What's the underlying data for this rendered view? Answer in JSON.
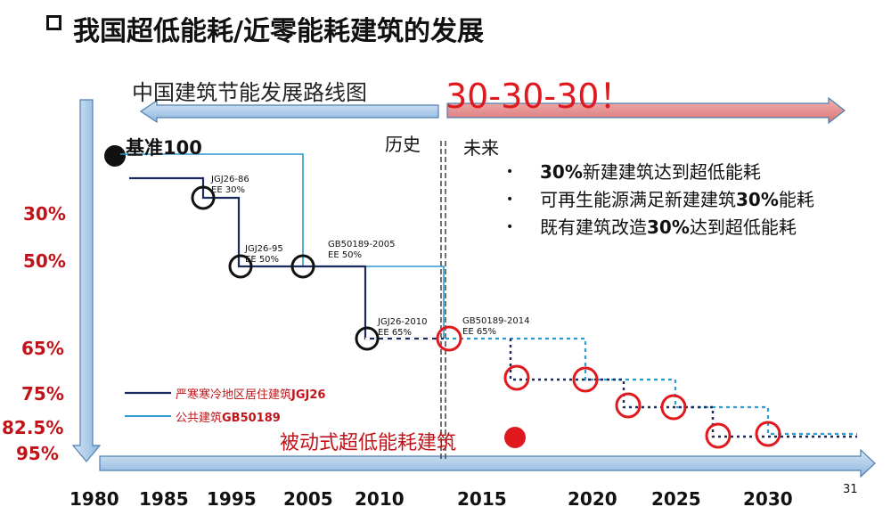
{
  "title": "我国超低能耗/近零能耗建筑的发展",
  "roadmap_label": "中国建筑节能发展路线图",
  "slogan": "30-30-30！",
  "history_label": "历史",
  "future_label": "未来",
  "baseline_label": "基准100",
  "future_goals": [
    {
      "pre": "",
      "bold": "30%",
      "post": "新建建筑达到超低能耗"
    },
    {
      "pre": "可再生能源满足新建建筑",
      "bold": "30%",
      "post": "能耗"
    },
    {
      "pre": "既有建筑改造",
      "bold": "30%",
      "post": "达到超低能耗"
    }
  ],
  "percent_labels": [
    "30%",
    "50%",
    "65%",
    "75%",
    "82.5%",
    "95%"
  ],
  "years": [
    "1980",
    "1985",
    "1995",
    "2005",
    "2010",
    "2015",
    "2020",
    "2025",
    "2030"
  ],
  "standards": {
    "jgj26_86": {
      "code": "JGJ26-86",
      "ee": "EE 30%"
    },
    "jgj26_95": {
      "code": "JGJ26-95",
      "ee": "EE 50%"
    },
    "gb50189_2005": {
      "code": "GB50189-2005",
      "ee": "EE 50%"
    },
    "jgj26_2010": {
      "code": "JGJ26-2010",
      "ee": "EE 65%"
    },
    "gb50189_2014": {
      "code": "GB50189-2014",
      "ee": "EE 65%"
    }
  },
  "legend": [
    {
      "pre": "严寒寒冷地区居住建筑",
      "bold": "JGJ26",
      "color": "#1b2a5e"
    },
    {
      "pre": "公共建筑",
      "bold": "GB50189",
      "color": "#2b9bd0"
    }
  ],
  "passive_label": "被动式超低能耗建筑",
  "page_number": "31",
  "colors": {
    "red": "#e0191e",
    "navy": "#1b2a5e",
    "cyan": "#2b9bd0",
    "axis_blue": "#7aa9d6"
  }
}
